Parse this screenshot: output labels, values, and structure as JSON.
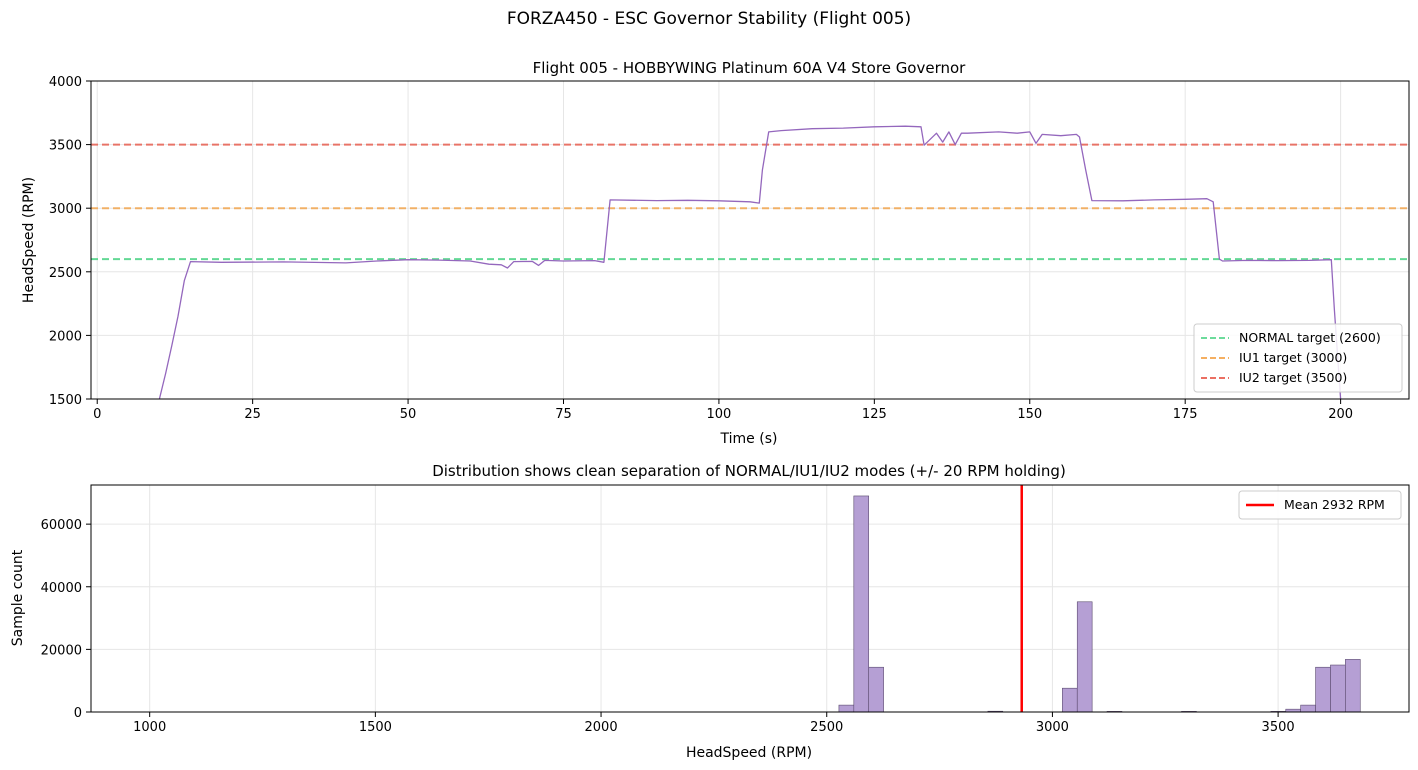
{
  "figure_title": "FORZA450 - ESC Governor Stability (Flight 005)",
  "chart_data": [
    {
      "type": "line",
      "title": "Flight 005 - HOBBYWING Platinum 60A V4 Store Governor",
      "xlabel": "Time (s)",
      "ylabel": "HeadSpeed (RPM)",
      "xlim": [
        -1,
        211
      ],
      "ylim": [
        1500,
        4000
      ],
      "xticks": [
        0,
        25,
        50,
        75,
        100,
        125,
        150,
        175,
        200
      ],
      "yticks": [
        1500,
        2000,
        2500,
        3000,
        3500,
        4000
      ],
      "grid": true,
      "legend_position": "lower-right",
      "series": [
        {
          "color": "#9467bd",
          "x": [
            10,
            11,
            12,
            13,
            14,
            15,
            20,
            30,
            40,
            45,
            50,
            55,
            60,
            63,
            65,
            66,
            67,
            70,
            71,
            72,
            75,
            80,
            81.5,
            82.5,
            90,
            95,
            100,
            105,
            106.5,
            107,
            108,
            110,
            115,
            120,
            125,
            130,
            132.5,
            133,
            135,
            136,
            137,
            138,
            139,
            140,
            145,
            148,
            150,
            151,
            152,
            155,
            157.5,
            158,
            159,
            160,
            165,
            170,
            175,
            178.5,
            179.5,
            180.5,
            181,
            185,
            190,
            195,
            198.5,
            199,
            200
          ],
          "y": [
            1500,
            1700,
            1920,
            2150,
            2430,
            2580,
            2575,
            2578,
            2570,
            2585,
            2595,
            2592,
            2585,
            2560,
            2555,
            2530,
            2580,
            2582,
            2550,
            2590,
            2585,
            2588,
            2575,
            3065,
            3060,
            3062,
            3058,
            3050,
            3040,
            3300,
            3600,
            3610,
            3625,
            3630,
            3640,
            3645,
            3640,
            3495,
            3590,
            3520,
            3600,
            3500,
            3590,
            3590,
            3600,
            3590,
            3600,
            3510,
            3580,
            3570,
            3580,
            3560,
            3300,
            3060,
            3058,
            3065,
            3070,
            3075,
            3050,
            2600,
            2585,
            2590,
            2588,
            2590,
            2595,
            2200,
            1500
          ]
        }
      ],
      "reference_lines": [
        {
          "label": "NORMAL target (2600)",
          "y": 2600,
          "color": "#2ecc71"
        },
        {
          "label": "IU1 target (3000)",
          "y": 3000,
          "color": "#f39c3a"
        },
        {
          "label": "IU2 target (3500)",
          "y": 3500,
          "color": "#e74c3c"
        }
      ]
    },
    {
      "type": "bar",
      "title": "Distribution shows clean separation of NORMAL/IU1/IU2 modes (+/- 20 RPM holding)",
      "xlabel": "HeadSpeed (RPM)",
      "ylabel": "Sample count",
      "xlim": [
        870,
        3790
      ],
      "ylim": [
        0,
        72500
      ],
      "xticks": [
        1000,
        1500,
        2000,
        2500,
        3000,
        3500
      ],
      "yticks": [
        0,
        20000,
        40000,
        60000
      ],
      "grid": true,
      "legend_position": "top-right",
      "bin_width": 33,
      "bins": [
        {
          "x": 2527,
          "count": 2200
        },
        {
          "x": 2560,
          "count": 69000
        },
        {
          "x": 2593,
          "count": 14300
        },
        {
          "x": 2857,
          "count": 250
        },
        {
          "x": 3022,
          "count": 7600
        },
        {
          "x": 3055,
          "count": 35200
        },
        {
          "x": 3121,
          "count": 200
        },
        {
          "x": 3286,
          "count": 200
        },
        {
          "x": 3484,
          "count": 200
        },
        {
          "x": 3517,
          "count": 900
        },
        {
          "x": 3550,
          "count": 2200
        },
        {
          "x": 3583,
          "count": 14300
        },
        {
          "x": 3616,
          "count": 15000
        },
        {
          "x": 3649,
          "count": 16800
        }
      ],
      "mean_line": {
        "label": "Mean 2932 RPM",
        "x": 2932,
        "color": "#ff0000"
      }
    }
  ],
  "colors": {
    "hist_fill": "#b59fd4",
    "hist_edge": "#5a4a6e",
    "grid": "#e6e6e6"
  }
}
